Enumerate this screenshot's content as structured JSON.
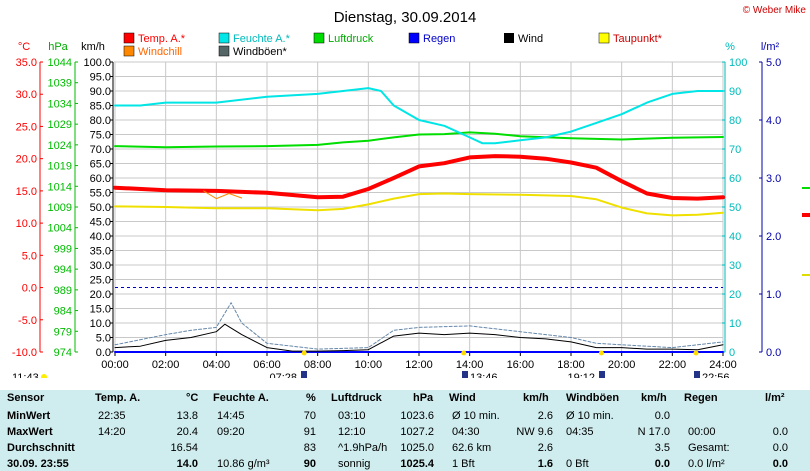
{
  "title": "Dienstag, 30.09.2014",
  "credit": "© Weber Mike",
  "colors": {
    "temp": "#ff0000",
    "humidity": "#00e5e5",
    "pressure": "#00dd00",
    "rain": "#0000ff",
    "wind": "#000000",
    "dewpoint": "#ffff00",
    "windchill": "#ff8800",
    "gust": "#556666",
    "axis_c": "#ff0000",
    "axis_hpa": "#00bb00",
    "axis_kmh": "#000000",
    "axis_pct": "#00bbbb",
    "axis_lm2": "#0000aa"
  },
  "chart_data": {
    "type": "line",
    "x_unit": "time",
    "x_ticks": [
      "00:00",
      "02:00",
      "04:00",
      "06:00",
      "08:00",
      "10:00",
      "12:00",
      "14:00",
      "16:00",
      "18:00",
      "20:00",
      "22:00",
      "24:00"
    ],
    "axes": {
      "celsius": {
        "label": "°C",
        "range": [
          -10,
          35
        ],
        "ticks": [
          "35.0",
          "30.0",
          "25.0",
          "20.0",
          "15.0",
          "10.0",
          "5.0",
          "0.0",
          "-5.0",
          "-10.0"
        ]
      },
      "hpa": {
        "label": "hPa",
        "range": [
          974,
          1044
        ],
        "ticks": [
          "1044",
          "1039",
          "1034",
          "1029",
          "1024",
          "1019",
          "1014",
          "1009",
          "1004",
          "999",
          "994",
          "989",
          "984",
          "979",
          "974"
        ]
      },
      "kmh": {
        "label": "km/h",
        "range": [
          0,
          100
        ],
        "ticks": [
          "100.0",
          "95.0",
          "90.0",
          "85.0",
          "80.0",
          "75.0",
          "70.0",
          "65.0",
          "60.0",
          "55.0",
          "50.0",
          "45.0",
          "40.0",
          "35.0",
          "30.0",
          "25.0",
          "20.0",
          "15.0",
          "10.0",
          "5.0",
          "0.0"
        ]
      },
      "percent": {
        "label": "%",
        "range": [
          0,
          100
        ],
        "ticks": [
          "100",
          "90",
          "80",
          "70",
          "60",
          "50",
          "40",
          "30",
          "20",
          "10",
          "0"
        ]
      },
      "lm2": {
        "label": "l/m²",
        "range": [
          0,
          5
        ],
        "ticks": [
          "5.0",
          "4.0",
          "3.0",
          "2.0",
          "1.0",
          "0.0"
        ]
      }
    },
    "legend": [
      "Temp. A.*",
      "Feuchte A.*",
      "Luftdruck",
      "Regen",
      "Wind",
      "Taupunkt*",
      "Windchill",
      "Windböen*"
    ],
    "series": [
      {
        "name": "Temp. A.*",
        "axis": "celsius",
        "x": [
          "00:00",
          "02:00",
          "04:00",
          "06:00",
          "08:00",
          "09:00",
          "10:00",
          "11:00",
          "12:00",
          "13:00",
          "14:00",
          "15:00",
          "16:00",
          "17:00",
          "18:00",
          "19:00",
          "20:00",
          "21:00",
          "22:00",
          "23:00",
          "24:00"
        ],
        "values": [
          15.5,
          15.1,
          15.0,
          14.7,
          14.0,
          14.1,
          15.3,
          17.0,
          18.8,
          19.3,
          20.2,
          20.4,
          20.3,
          20.0,
          19.4,
          18.6,
          16.5,
          14.6,
          13.9,
          13.8,
          14.0
        ]
      },
      {
        "name": "Feuchte A.*",
        "axis": "percent",
        "x": [
          "00:00",
          "01:00",
          "02:00",
          "04:00",
          "06:00",
          "08:00",
          "09:00",
          "10:00",
          "10:30",
          "11:00",
          "12:00",
          "13:00",
          "14:00",
          "14:30",
          "15:00",
          "16:00",
          "17:00",
          "18:00",
          "19:00",
          "20:00",
          "21:00",
          "22:00",
          "23:00",
          "24:00"
        ],
        "values": [
          85,
          85,
          86,
          86,
          88,
          89,
          90,
          91,
          90,
          85,
          80,
          78,
          74,
          72,
          72,
          73,
          74,
          76,
          79,
          82,
          86,
          89,
          90,
          90
        ]
      },
      {
        "name": "Luftdruck",
        "axis": "hpa",
        "x": [
          "00:00",
          "02:00",
          "04:00",
          "06:00",
          "08:00",
          "09:00",
          "10:00",
          "11:00",
          "12:00",
          "13:00",
          "14:00",
          "15:00",
          "16:00",
          "18:00",
          "20:00",
          "22:00",
          "24:00"
        ],
        "values": [
          1023.7,
          1023.4,
          1023.6,
          1023.7,
          1024.0,
          1024.6,
          1025.0,
          1025.8,
          1026.5,
          1026.6,
          1027.0,
          1026.7,
          1026.1,
          1025.6,
          1025.3,
          1025.7,
          1025.9
        ]
      },
      {
        "name": "Taupunkt*",
        "axis": "celsius",
        "x": [
          "00:00",
          "02:00",
          "04:00",
          "06:00",
          "08:00",
          "09:00",
          "10:00",
          "11:00",
          "12:00",
          "13:00",
          "14:00",
          "16:00",
          "18:00",
          "19:00",
          "20:00",
          "21:00",
          "22:00",
          "23:00",
          "24:00"
        ],
        "values": [
          12.6,
          12.5,
          12.3,
          12.3,
          12.0,
          12.2,
          12.9,
          13.8,
          14.5,
          14.6,
          14.5,
          14.4,
          14.2,
          13.7,
          12.4,
          11.5,
          11.2,
          11.3,
          11.6
        ]
      },
      {
        "name": "Windchill",
        "axis": "celsius",
        "x": [
          "03:30",
          "04:00",
          "04:30",
          "05:00"
        ],
        "values": [
          15.0,
          13.8,
          14.6,
          13.9
        ]
      },
      {
        "name": "Wind",
        "axis": "kmh",
        "x": [
          "00:00",
          "01:00",
          "02:00",
          "03:00",
          "04:00",
          "04:20",
          "05:00",
          "06:00",
          "07:00",
          "08:00",
          "09:00",
          "10:00",
          "11:00",
          "12:00",
          "13:00",
          "14:00",
          "15:00",
          "16:00",
          "17:00",
          "18:00",
          "19:00",
          "20:00",
          "21:00",
          "22:00",
          "23:00",
          "24:00"
        ],
        "values": [
          1.5,
          2.0,
          4.0,
          5.0,
          7.0,
          9.6,
          6.0,
          1.5,
          0.3,
          0.3,
          0.5,
          0.8,
          5.5,
          6.5,
          6.0,
          6.5,
          6.0,
          5.0,
          4.5,
          3.5,
          1.5,
          1.5,
          1.0,
          1.0,
          0.8,
          2.5
        ]
      },
      {
        "name": "Windböen*",
        "axis": "kmh",
        "x": [
          "00:00",
          "02:00",
          "03:00",
          "04:00",
          "04:35",
          "05:00",
          "06:00",
          "08:00",
          "10:00",
          "11:00",
          "12:00",
          "14:00",
          "15:00",
          "16:00",
          "17:00",
          "18:00",
          "19:00",
          "20:00",
          "22:00",
          "24:00"
        ],
        "values": [
          2.5,
          6.0,
          7.5,
          8.5,
          17.0,
          10.0,
          3.0,
          1.0,
          1.5,
          7.5,
          8.5,
          9.0,
          8.0,
          7.0,
          6.0,
          5.0,
          3.0,
          2.5,
          1.5,
          3.5
        ]
      },
      {
        "name": "Regen",
        "axis": "lm2",
        "x": [
          "00:00",
          "24:00"
        ],
        "values": [
          0.0,
          0.0
        ]
      }
    ],
    "reference_lines": [
      {
        "axis": "celsius",
        "value": 0.0
      }
    ],
    "sun_events": [
      {
        "label": "11:43",
        "time": "11:43"
      },
      {
        "label": "07:28",
        "time": "07:28"
      },
      {
        "label": "13:46",
        "time": "13:46"
      },
      {
        "label": "19:12",
        "time": "19:12"
      },
      {
        "label": "22:56",
        "time": "22:56"
      }
    ],
    "grid": true
  },
  "table": {
    "headers": [
      "Sensor",
      "Temp. A.",
      "°C",
      "Feuchte A.",
      "%",
      "Luftdruck",
      "hPa",
      "Wind",
      "km/h",
      "Windböen",
      "km/h",
      "Regen",
      "l/m²"
    ],
    "rows": [
      {
        "label": "MinWert",
        "t_time": "22:35",
        "t_val": "13.8",
        "h_time": "14:45",
        "h_val": "70",
        "p_time": "03:10",
        "p_val": "1023.6",
        "w_time": "Ø 10 min.",
        "w_val": "2.6",
        "g_time": "Ø 10 min.",
        "g_val": "0.0",
        "r_time": "",
        "r_val": ""
      },
      {
        "label": "MaxWert",
        "t_time": "14:20",
        "t_val": "20.4",
        "h_time": "09:20",
        "h_val": "91",
        "p_time": "12:10",
        "p_val": "1027.2",
        "w_time": "04:30",
        "w_val": "NW 9.6",
        "g_time": "04:35",
        "g_val": "N 17.0",
        "r_time": "00:00",
        "r_val": "0.0"
      },
      {
        "label": "Durchschnitt",
        "t_time": "",
        "t_val": "16.54",
        "h_time": "",
        "h_val": "83",
        "p_time": "^1.9hPa/h",
        "p_val": "1025.0",
        "w_time": "62.6 km",
        "w_val": "2.6",
        "g_time": "",
        "g_val": "3.5",
        "r_time": "Gesamt:",
        "r_val": "0.0"
      },
      {
        "label": "30.09.  23:55",
        "t_time": "",
        "t_val": "14.0",
        "h_time": "10.86 g/m³",
        "h_val": "90",
        "p_time": "sonnig",
        "p_val": "1025.4",
        "w_time": "1 Bft",
        "w_val": "1.6",
        "g_time": "0 Bft",
        "g_val": "0.0",
        "r_time": "0.0 l/m²",
        "r_val": "0.0"
      }
    ]
  }
}
